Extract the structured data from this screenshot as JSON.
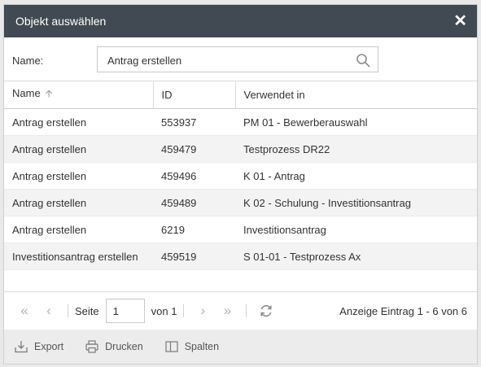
{
  "dialog": {
    "title": "Objekt auswählen",
    "close": "✕"
  },
  "filter": {
    "label": "Name:",
    "value": "Antrag erstellen"
  },
  "table": {
    "columns": [
      "Name",
      "ID",
      "Verwendet in"
    ],
    "sort_indicator": "🡡",
    "rows": [
      {
        "name": "Antrag erstellen",
        "id": "553937",
        "used_in": "PM 01 - Bewerberauswahl"
      },
      {
        "name": "Antrag erstellen",
        "id": "459479",
        "used_in": "Testprozess DR22"
      },
      {
        "name": "Antrag erstellen",
        "id": "459496",
        "used_in": "K 01 - Antrag"
      },
      {
        "name": "Antrag erstellen",
        "id": "459489",
        "used_in": "K 02 - Schulung - Investitionsantrag"
      },
      {
        "name": "Antrag erstellen",
        "id": "6219",
        "used_in": "Investitionsantrag"
      },
      {
        "name": "Investitionsantrag erstellen",
        "id": "459519",
        "used_in": "S 01-01 - Testprozess Ax"
      }
    ]
  },
  "pager": {
    "first": "«",
    "prev": "‹",
    "next": "›",
    "last": "»",
    "page_label": "Seite",
    "page_value": "1",
    "of_label": "von 1",
    "info": "Anzeige Eintrag 1 - 6 von 6"
  },
  "toolbar": {
    "export": "Export",
    "print": "Drucken",
    "columns": "Spalten"
  }
}
